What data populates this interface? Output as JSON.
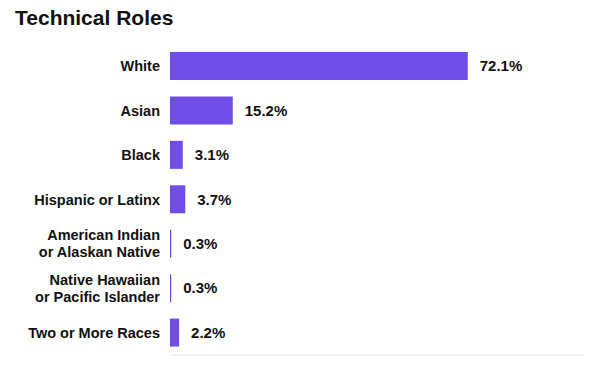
{
  "chart_data": {
    "type": "bar",
    "orientation": "horizontal",
    "title": "Technical Roles",
    "categories": [
      "White",
      "Asian",
      "Black",
      "Hispanic or Latinx",
      "American Indian or Alaskan Native",
      "Native Hawaiian or Pacific Islander",
      "Two or More Races"
    ],
    "values": [
      72.1,
      15.2,
      3.1,
      3.7,
      0.3,
      0.3,
      2.2
    ],
    "value_labels": [
      "72.1%",
      "15.2%",
      "3.1%",
      "3.7%",
      "0.3%",
      "0.3%",
      "2.2%"
    ],
    "data_labels": true,
    "color": "#6f4ee8",
    "xlim": [
      0,
      100
    ],
    "tick_labels": "y",
    "grid": false
  }
}
